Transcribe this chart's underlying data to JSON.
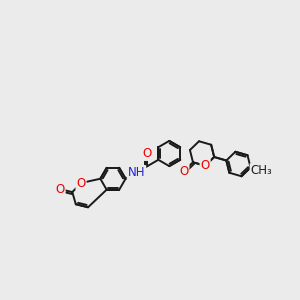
{
  "bg_color": "#ebebeb",
  "bond_color": "#1a1a1a",
  "bond_width": 1.4,
  "atom_colors": {
    "O": "#ee0000",
    "N": "#2222cc",
    "C": "#1a1a1a"
  },
  "font_size": 8.5,
  "figsize": [
    3.0,
    3.0
  ],
  "dpi": 100,
  "bl": 0.36
}
